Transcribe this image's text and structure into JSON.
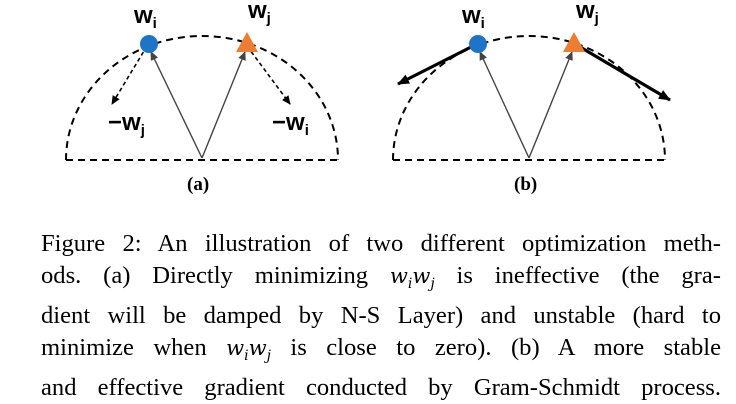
{
  "figure": {
    "panels": [
      {
        "label": "(a)",
        "vectors": {
          "wi": {
            "base": "w",
            "sub": "i"
          },
          "wj": {
            "base": "w",
            "sub": "j"
          },
          "neg_wj": {
            "base": "−w",
            "sub": "j"
          },
          "neg_wi": {
            "base": "−w",
            "sub": "i"
          }
        }
      },
      {
        "label": "(b)",
        "vectors": {
          "wi": {
            "base": "w",
            "sub": "i"
          },
          "wj": {
            "base": "w",
            "sub": "j"
          }
        }
      }
    ],
    "colors": {
      "wi_point": "#1f74c8",
      "wj_point": "#ed7d31",
      "ink": "#000000",
      "thin_arrow": "#444444"
    }
  },
  "caption": {
    "label": "Figure 2:",
    "lines": [
      [
        "An illustration of two different optimization meth-"
      ],
      [
        "ods. (a) Directly minimizing ",
        "w_i w_j",
        " is ineffective (the gra-"
      ],
      [
        "dient will be damped by N-S Layer) and unstable (hard to"
      ],
      [
        "minimize when ",
        "w_i w_j",
        " is close to zero). (b) A more stable"
      ],
      [
        "and effective gradient conducted by Gram-Schmidt process."
      ]
    ],
    "line1": "An illustration of two different optimization meth-",
    "line2a": "ods. (a) Directly minimizing ",
    "line2b": " is ineffective (the gra-",
    "line3": "dient will be damped by N-S Layer) and unstable (hard to",
    "line4a": "minimize when ",
    "line4b": " is close to zero). (b) A more stable",
    "line5": "and effective gradient conducted by Gram-Schmidt process.",
    "math_base_1": "w",
    "math_sub_1": "i",
    "math_base_2": "w",
    "math_sub_2": "j"
  }
}
